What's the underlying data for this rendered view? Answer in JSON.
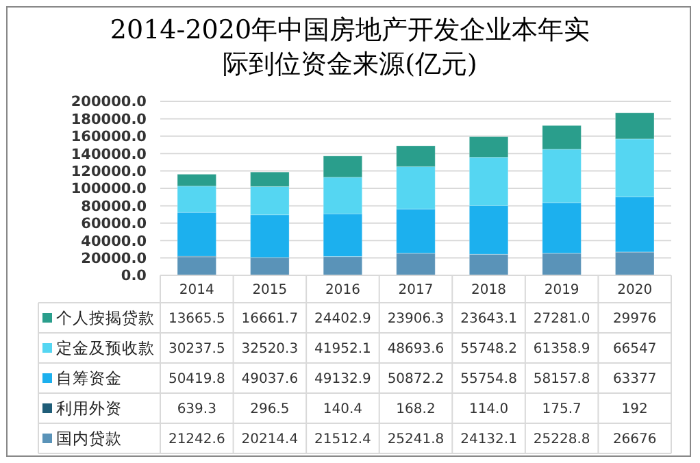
{
  "chart_data": {
    "type": "bar",
    "stacked": true,
    "title": "2014-2020年中国房地产开发企业本年实际到位资金来源(亿元)",
    "categories": [
      "2014",
      "2015",
      "2016",
      "2017",
      "2018",
      "2019",
      "2020"
    ],
    "series": [
      {
        "name": "国内贷款",
        "color": "#5a93b8",
        "values": [
          21242.6,
          20214.4,
          21512.4,
          25241.8,
          24132.1,
          25228.8,
          26676
        ],
        "value_labels": [
          "21242.6",
          "20214.4",
          "21512.4",
          "25241.8",
          "24132.1",
          "25228.8",
          "26676"
        ]
      },
      {
        "name": "利用外资",
        "color": "#1f5d78",
        "values": [
          639.3,
          296.5,
          140.4,
          168.2,
          114.0,
          175.7,
          192
        ],
        "value_labels": [
          "639.3",
          "296.5",
          "140.4",
          "168.2",
          "114.0",
          "175.7",
          "192"
        ]
      },
      {
        "name": "自筹资金",
        "color": "#1cb0ee",
        "values": [
          50419.8,
          49037.6,
          49132.9,
          50872.2,
          55754.8,
          58157.8,
          63377
        ],
        "value_labels": [
          "50419.8",
          "49037.6",
          "49132.9",
          "50872.2",
          "55754.8",
          "58157.8",
          "63377"
        ]
      },
      {
        "name": "定金及预收款",
        "color": "#55d6f2",
        "values": [
          30237.5,
          32520.3,
          41952.1,
          48693.6,
          55748.2,
          61358.9,
          66547
        ],
        "value_labels": [
          "30237.5",
          "32520.3",
          "41952.1",
          "48693.6",
          "55748.2",
          "61358.9",
          "66547"
        ]
      },
      {
        "name": "个人按揭贷款",
        "color": "#2a9e8c",
        "values": [
          13665.5,
          16661.7,
          24402.9,
          23906.3,
          23643.1,
          27281.0,
          29976
        ],
        "value_labels": [
          "13665.5",
          "16661.7",
          "24402.9",
          "23906.3",
          "23643.1",
          "27281.0",
          "29976"
        ]
      }
    ],
    "ylim": [
      0,
      200000
    ],
    "yticks": [
      {
        "value": 0,
        "label": "0.0"
      },
      {
        "value": 20000,
        "label": "20000.0"
      },
      {
        "value": 40000,
        "label": "40000.0"
      },
      {
        "value": 60000,
        "label": "60000.0"
      },
      {
        "value": 80000,
        "label": "80000.0"
      },
      {
        "value": 100000,
        "label": "100000.0"
      },
      {
        "value": 120000,
        "label": "120000.0"
      },
      {
        "value": 140000,
        "label": "140000.0"
      },
      {
        "value": 160000,
        "label": "160000.0"
      },
      {
        "value": 180000,
        "label": "180000.0"
      },
      {
        "value": 200000,
        "label": "200000.0"
      }
    ],
    "grid": "y",
    "legend": "bottom"
  }
}
